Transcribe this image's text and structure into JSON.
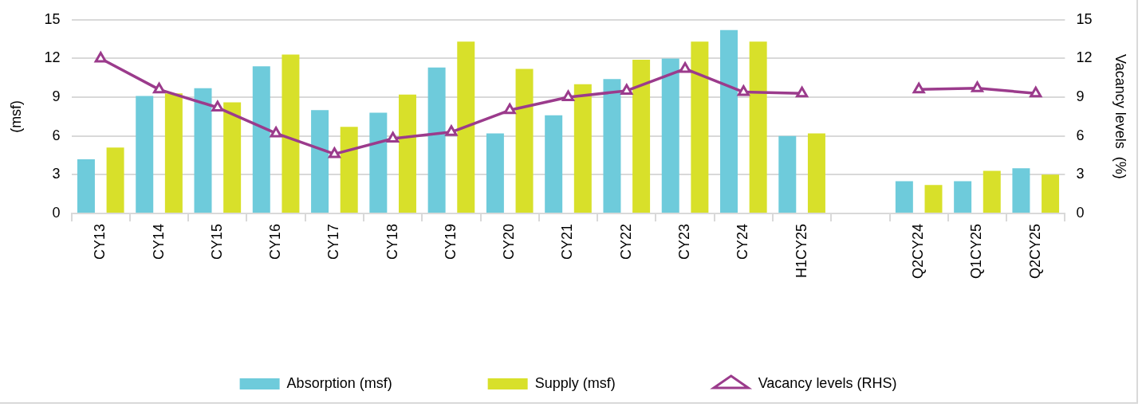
{
  "chart_data": {
    "type": "bar",
    "ylabel": "(msf)",
    "y2label": "Vacancy levels  (%)",
    "categories": [
      "CY13",
      "CY14",
      "CY15",
      "CY16",
      "CY17",
      "CY18",
      "CY19",
      "CY20",
      "CY21",
      "CY22",
      "CY23",
      "CY24",
      "H1CY25",
      null,
      "Q2CY24",
      "Q1CY25",
      "Q2CY25"
    ],
    "series": [
      {
        "name": "Absorption (msf)",
        "color": "#6ecbdb",
        "values": [
          4.2,
          9.1,
          9.7,
          11.4,
          8.0,
          7.8,
          11.3,
          6.2,
          7.6,
          10.4,
          12.0,
          14.2,
          6.0,
          null,
          2.5,
          2.5,
          3.5
        ]
      },
      {
        "name": "Supply (msf)",
        "color": "#d8e02a",
        "values": [
          5.1,
          9.3,
          8.6,
          12.3,
          6.7,
          9.2,
          13.3,
          11.2,
          10.0,
          11.9,
          13.3,
          13.3,
          6.2,
          null,
          2.2,
          3.3,
          3.0
        ]
      },
      {
        "name": "Vacancy levels (RHS)",
        "type": "line",
        "axis": "y2",
        "color": "#9b3b8c",
        "marker": "triangle",
        "values": [
          12.0,
          9.6,
          8.2,
          6.2,
          4.6,
          5.8,
          6.3,
          8.0,
          9.0,
          9.5,
          11.2,
          9.4,
          9.3,
          null,
          9.6,
          9.7,
          9.3
        ]
      }
    ],
    "ylim": [
      0,
      15
    ],
    "yticks": [
      0,
      3,
      6,
      9,
      12,
      15
    ],
    "y2lim": [
      0,
      15
    ],
    "y2ticks": [
      0,
      3,
      6,
      9,
      12,
      15
    ],
    "grid": "y",
    "legend": "bottom"
  }
}
